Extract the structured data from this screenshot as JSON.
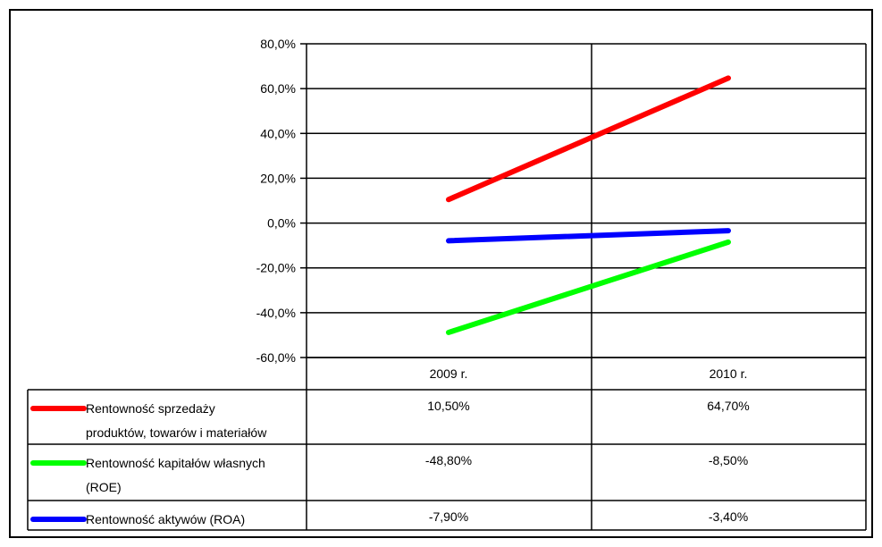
{
  "chart_data": {
    "type": "line",
    "categories": [
      "2009 r.",
      "2010 r."
    ],
    "ylim": [
      -60,
      80
    ],
    "yticks": [
      80,
      60,
      40,
      20,
      0,
      -20,
      -40,
      -60
    ],
    "ytick_labels": [
      "80,0%",
      "60,0%",
      "40,0%",
      "20,0%",
      "0,0%",
      "-20,0%",
      "-40,0%",
      "-60,0%"
    ],
    "grid": true,
    "legend": "data-table-below",
    "series": [
      {
        "name_lines": [
          "Rentowność sprzedaży",
          "produktów, towarów i materiałów"
        ],
        "values": [
          10.5,
          64.7
        ],
        "labels": [
          "10,50%",
          "64,70%"
        ],
        "color": "#ff0000"
      },
      {
        "name_lines": [
          "Rentowność kapitałów własnych",
          "(ROE)"
        ],
        "values": [
          -48.8,
          -8.5
        ],
        "labels": [
          "-48,80%",
          "-8,50%"
        ],
        "color": "#00ff00"
      },
      {
        "name_lines": [
          "Rentowność aktywów (ROA)"
        ],
        "values": [
          -7.9,
          -3.4
        ],
        "labels": [
          "-7,90%",
          "-3,40%"
        ],
        "color": "#0000ff"
      }
    ]
  }
}
